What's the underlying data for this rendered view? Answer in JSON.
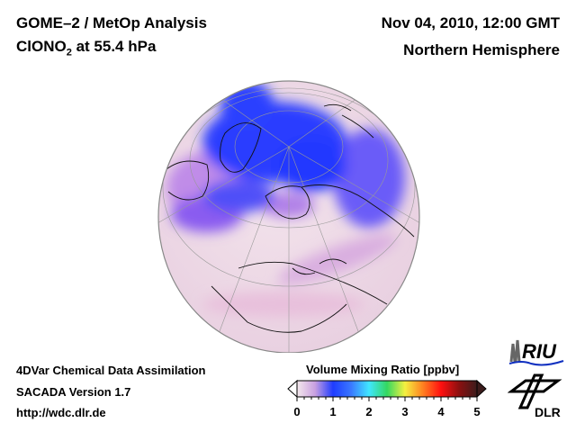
{
  "header": {
    "title_line1": "GOME–2 / MetOp Analysis",
    "species_main": "ClONO",
    "species_sub": "2",
    "species_rest": " at 55.4 hPa",
    "date": "Nov 04, 2010, 12:00 GMT",
    "region": "Northern Hemisphere"
  },
  "footer": {
    "line1": "4DVar Chemical Data Assimilation",
    "line2": "SACADA Version 1.7",
    "line3": "http://wdc.dlr.de"
  },
  "colorbar": {
    "label": "Volume Mixing Ratio [ppbv]",
    "ticks": [
      "0",
      "1",
      "2",
      "3",
      "4",
      "5"
    ],
    "range": [
      0,
      5
    ],
    "colors": [
      "#f4e8ec",
      "#c9a0e0",
      "#1f3cff",
      "#3a78ff",
      "#40e6ff",
      "#34d860",
      "#f4f040",
      "#ff8020",
      "#ff1010",
      "#8c1010",
      "#3c1c1c"
    ]
  },
  "logos": {
    "riu": "RIU",
    "dlr": "DLR"
  }
}
